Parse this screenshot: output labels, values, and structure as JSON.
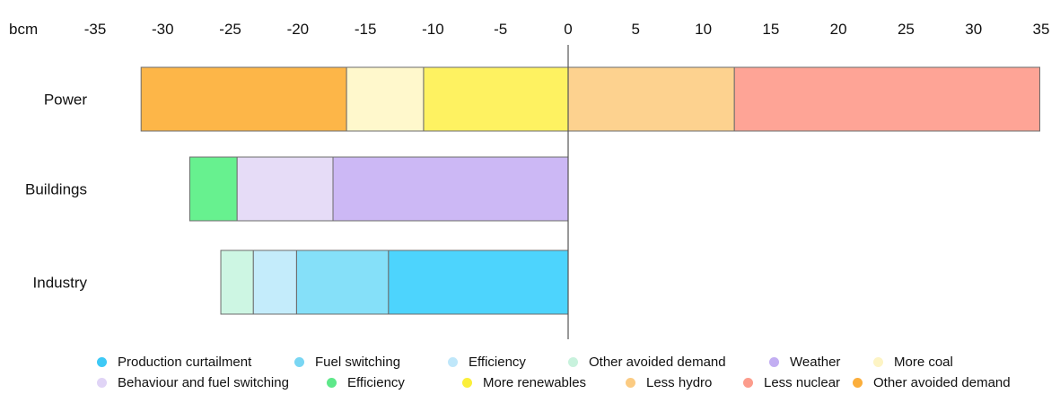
{
  "chart_data": {
    "type": "bar",
    "orientation": "horizontal",
    "stacked": true,
    "unit_label": "bcm",
    "xlim": [
      -35,
      35
    ],
    "x_ticks": [
      -35,
      -30,
      -25,
      -20,
      -15,
      -10,
      -5,
      0,
      5,
      10,
      15,
      20,
      25,
      30,
      35
    ],
    "x_tick_labels": [
      "-35",
      "-30",
      "-25",
      "-20",
      "-15",
      "-10",
      "-5",
      "0",
      "5",
      "10",
      "15",
      "20",
      "25",
      "30",
      "35"
    ],
    "categories": [
      "Power",
      "Buildings",
      "Industry"
    ],
    "series": [
      {
        "name": "Production curtailment",
        "color": "#4dd4fd",
        "values": [
          0,
          0,
          -13.3
        ]
      },
      {
        "name": "Fuel switching",
        "color": "#85e0f9",
        "values": [
          0,
          0,
          -6.8
        ]
      },
      {
        "name": "Efficiency",
        "color": "#c4ecfb",
        "values": [
          0,
          0,
          -3.2
        ]
      },
      {
        "name": "Other avoided demand",
        "color": "#cdf6e3",
        "values": [
          0,
          0,
          -2.4
        ]
      },
      {
        "name": "Weather",
        "color": "#ccb8f5",
        "values": [
          0,
          -17.4,
          0
        ]
      },
      {
        "name": "Behaviour and fuel switching",
        "color": "#e6dcf7",
        "values": [
          0,
          -7.1,
          0
        ]
      },
      {
        "name": "Efficiency",
        "color": "#67f18f",
        "values": [
          0,
          -3.5,
          0
        ]
      },
      {
        "name": "More renewables",
        "color": "#fef261",
        "values": [
          -10.7,
          0,
          0
        ]
      },
      {
        "name": "More coal",
        "color": "#fff8cc",
        "values": [
          -5.7,
          0,
          0
        ]
      },
      {
        "name": "Other avoided demand",
        "color": "#fdb648",
        "values": [
          -15.2,
          0,
          0
        ]
      },
      {
        "name": "Less hydro",
        "color": "#fdd28f",
        "values": [
          12.3,
          0,
          0
        ]
      },
      {
        "name": "Less nuclear",
        "color": "#fea496",
        "values": [
          22.6,
          0,
          0
        ]
      }
    ],
    "legend": {
      "placement": "bottom",
      "rows": [
        [
          {
            "label": "Production curtailment",
            "color": "#3ec9f6"
          },
          {
            "label": "Fuel switching",
            "color": "#79d6f3"
          },
          {
            "label": "Efficiency",
            "color": "#bfe7fa"
          },
          {
            "label": "Other avoided demand",
            "color": "#c8f2dd"
          },
          {
            "label": "Weather",
            "color": "#c2aef2"
          },
          {
            "label": "More coal",
            "color": "#fdf4c4"
          }
        ],
        [
          {
            "label": "Behaviour and fuel switching",
            "color": "#e0d4f6"
          },
          {
            "label": "Efficiency",
            "color": "#5ee88a"
          },
          {
            "label": "More renewables",
            "color": "#fbef3a"
          },
          {
            "label": "Less hydro",
            "color": "#fbcb82"
          },
          {
            "label": "Less nuclear",
            "color": "#fc9c8c"
          },
          {
            "label": "Other avoided demand",
            "color": "#fbae3c"
          }
        ]
      ]
    },
    "grid": false,
    "colors": {
      "axis": "#555555",
      "bar_outline": "#6b6b6b"
    }
  }
}
